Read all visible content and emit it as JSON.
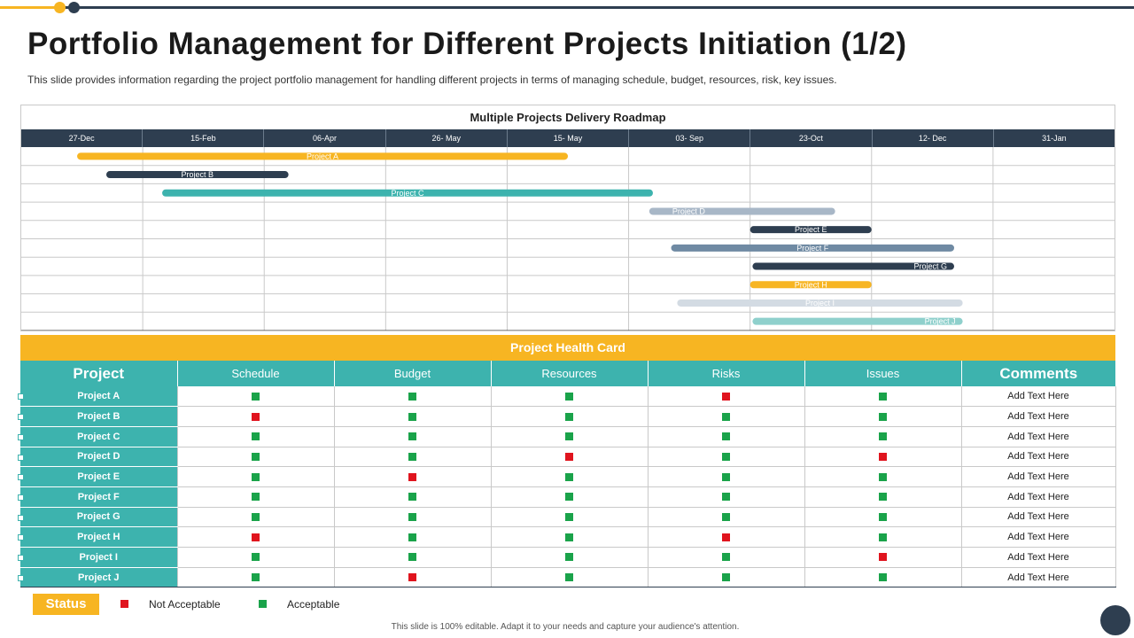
{
  "title": "Portfolio Management for Different Projects Initiation (1/2)",
  "subtitle": "This slide provides information regarding the project portfolio management for handling different projects in terms of managing schedule, budget, resources, risk, key issues.",
  "colors": {
    "yellow": "#f7b522",
    "navy": "#2e3e50",
    "teal": "#3db3ae",
    "green": "#1aa34a",
    "red": "#e0141e"
  },
  "chart_data": {
    "type": "gantt",
    "title": "Multiple Projects Delivery Roadmap",
    "dates": [
      "27-Dec",
      "15-Feb",
      "06-Apr",
      "26- May",
      "15- May",
      "03- Sep",
      "23-Oct",
      "12- Dec",
      "31-Jan"
    ],
    "projects": [
      {
        "name": "Project A",
        "start": 0.46,
        "end": 4.5,
        "color": "#f7b522",
        "label_pos": "center"
      },
      {
        "name": "Project B",
        "start": 0.7,
        "end": 2.2,
        "color": "#2e3e50",
        "label_pos": "center"
      },
      {
        "name": "Project C",
        "start": 1.16,
        "end": 5.2,
        "color": "#3db3ae",
        "label_pos": "center"
      },
      {
        "name": "Project D",
        "start": 5.17,
        "end": 6.7,
        "color": "#a8b7c7",
        "label_pos": "left"
      },
      {
        "name": "Project E",
        "start": 6.0,
        "end": 7.0,
        "color": "#2e3e50",
        "label_pos": "center"
      },
      {
        "name": "Project F",
        "start": 5.35,
        "end": 7.68,
        "color": "#6f8aa3",
        "label_pos": "center"
      },
      {
        "name": "Project G",
        "start": 6.02,
        "end": 7.68,
        "color": "#2e3e50",
        "label_pos": "right"
      },
      {
        "name": "Project H",
        "start": 6.0,
        "end": 7.0,
        "color": "#f7b522",
        "label_pos": "center"
      },
      {
        "name": "Project I",
        "start": 5.4,
        "end": 7.75,
        "color": "#d3dbe3",
        "label_pos": "center"
      },
      {
        "name": "Project J",
        "start": 6.02,
        "end": 7.75,
        "color": "#8fd0cc",
        "label_pos": "right"
      }
    ]
  },
  "health_card": {
    "title": "Project Health Card",
    "columns": [
      "Project",
      "Schedule",
      "Budget",
      "Resources",
      "Risks",
      "Issues",
      "Comments"
    ],
    "rows": [
      {
        "project": "Project A",
        "status": [
          "g",
          "g",
          "g",
          "r",
          "g"
        ],
        "comment": "Add Text Here"
      },
      {
        "project": "Project B",
        "status": [
          "r",
          "g",
          "g",
          "g",
          "g"
        ],
        "comment": "Add Text Here"
      },
      {
        "project": "Project C",
        "status": [
          "g",
          "g",
          "g",
          "g",
          "g"
        ],
        "comment": "Add Text Here"
      },
      {
        "project": "Project D",
        "status": [
          "g",
          "g",
          "r",
          "g",
          "r"
        ],
        "comment": "Add Text Here"
      },
      {
        "project": "Project E",
        "status": [
          "g",
          "r",
          "g",
          "g",
          "g"
        ],
        "comment": "Add Text Here"
      },
      {
        "project": "Project F",
        "status": [
          "g",
          "g",
          "g",
          "g",
          "g"
        ],
        "comment": "Add Text Here"
      },
      {
        "project": "Project G",
        "status": [
          "g",
          "g",
          "g",
          "g",
          "g"
        ],
        "comment": "Add Text Here"
      },
      {
        "project": "Project H",
        "status": [
          "r",
          "g",
          "g",
          "r",
          "g"
        ],
        "comment": "Add Text Here"
      },
      {
        "project": "Project I",
        "status": [
          "g",
          "g",
          "g",
          "g",
          "r"
        ],
        "comment": "Add Text Here"
      },
      {
        "project": "Project J",
        "status": [
          "g",
          "r",
          "g",
          "g",
          "g"
        ],
        "comment": "Add Text Here"
      }
    ]
  },
  "legend": {
    "status_label": "Status",
    "not_acceptable": "Not Acceptable",
    "acceptable": "Acceptable"
  },
  "footer": "This slide is 100% editable. Adapt it to your needs and capture your audience's attention."
}
